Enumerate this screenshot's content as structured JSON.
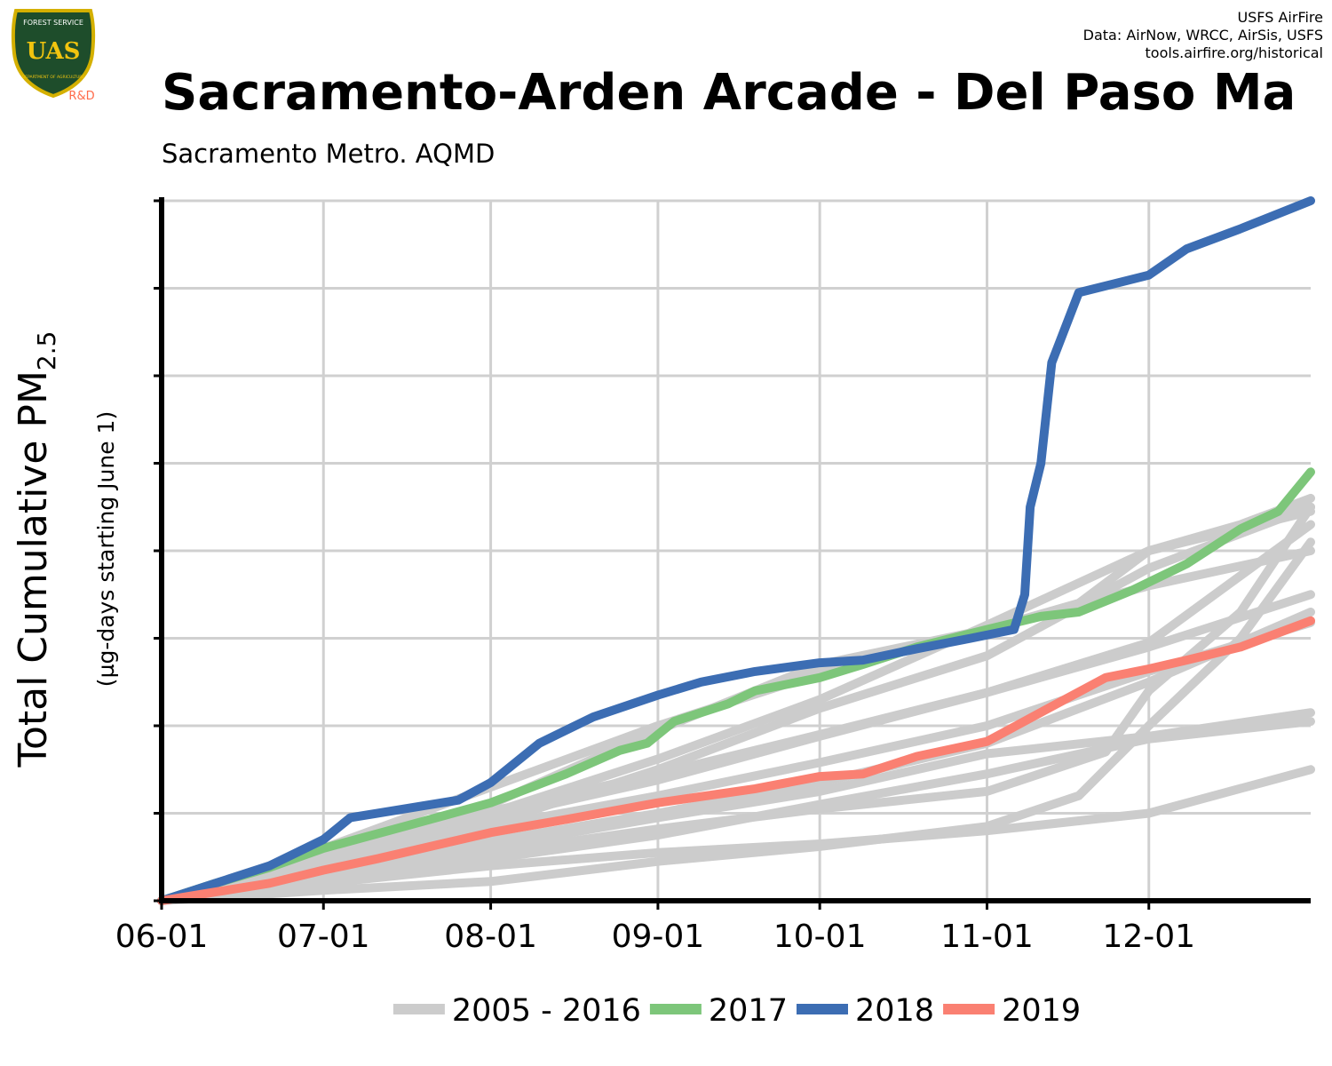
{
  "header": {
    "title": "Sacramento-Arden Arcade - Del Paso Ma",
    "subtitle": "Sacramento Metro. AQMD",
    "credits": [
      "USFS AirFire",
      "Data: AirNow, WRCC, AirSis, USFS",
      "tools.airfire.org/historical"
    ]
  },
  "logo": {
    "top_text": "FOREST SERVICE",
    "mark": "UAS",
    "bottom_text": "DEPARTMENT OF AGRICULTURE",
    "tag": "R&D",
    "colors": {
      "fill": "#1e4d2b",
      "border": "#d4b000",
      "tag": "#ff6b4a"
    }
  },
  "colors": {
    "historical": "#cccccc",
    "y2017": "#7dc67a",
    "y2018": "#3c6db3",
    "y2019": "#fa8072",
    "grid": "#d0d0d0",
    "axis": "#000000"
  },
  "chart_data": {
    "type": "line",
    "title": "Sacramento-Arden Arcade - Del Paso Ma",
    "subtitle": "Sacramento Metro. AQMD",
    "ylabel_main": "Total Cumulative PM",
    "ylabel_sub": "2.5",
    "ylabel_units": "(µg-days starting June 1)",
    "x_unit": "day of season (0 = 06-01)",
    "x_ticks": [
      {
        "label": "06-01",
        "day": 0
      },
      {
        "label": "07-01",
        "day": 30
      },
      {
        "label": "08-01",
        "day": 61
      },
      {
        "label": "09-01",
        "day": 92
      },
      {
        "label": "10-01",
        "day": 122
      },
      {
        "label": "11-01",
        "day": 153
      },
      {
        "label": "12-01",
        "day": 183
      }
    ],
    "xlim": [
      0,
      213
    ],
    "ylim": [
      0,
      8
    ],
    "y_tick_count": 9,
    "y_tick_labels_shown": false,
    "grid": true,
    "legend_position": "bottom",
    "legend": [
      {
        "label": "2005 - 2016",
        "color_key": "historical"
      },
      {
        "label": "2017",
        "color_key": "y2017"
      },
      {
        "label": "2018",
        "color_key": "y2018"
      },
      {
        "label": "2019",
        "color_key": "y2019"
      }
    ],
    "historical_series": [
      {
        "points": [
          [
            0,
            0
          ],
          [
            30,
            0.12
          ],
          [
            61,
            0.22
          ],
          [
            92,
            0.45
          ],
          [
            122,
            0.62
          ],
          [
            153,
            0.85
          ],
          [
            170,
            1.2
          ],
          [
            183,
            2.0
          ],
          [
            200,
            3.0
          ],
          [
            213,
            4.1
          ]
        ]
      },
      {
        "points": [
          [
            0,
            0
          ],
          [
            30,
            0.5
          ],
          [
            61,
            0.95
          ],
          [
            92,
            1.38
          ],
          [
            122,
            1.88
          ],
          [
            153,
            2.38
          ],
          [
            183,
            2.95
          ],
          [
            213,
            4.3
          ]
        ]
      },
      {
        "points": [
          [
            0,
            0
          ],
          [
            30,
            0.42
          ],
          [
            61,
            0.88
          ],
          [
            92,
            1.5
          ],
          [
            122,
            2.2
          ],
          [
            153,
            2.8
          ],
          [
            183,
            3.8
          ],
          [
            213,
            4.5
          ]
        ]
      },
      {
        "points": [
          [
            0,
            0
          ],
          [
            30,
            0.5
          ],
          [
            61,
            1.02
          ],
          [
            92,
            1.45
          ],
          [
            122,
            1.9
          ],
          [
            153,
            2.38
          ],
          [
            183,
            2.9
          ],
          [
            213,
            3.5
          ]
        ]
      },
      {
        "points": [
          [
            0,
            0
          ],
          [
            30,
            0.45
          ],
          [
            61,
            0.85
          ],
          [
            92,
            1.2
          ],
          [
            122,
            1.58
          ],
          [
            153,
            2.0
          ],
          [
            183,
            2.62
          ],
          [
            213,
            3.18
          ]
        ]
      },
      {
        "points": [
          [
            0,
            0
          ],
          [
            30,
            0.55
          ],
          [
            61,
            1.1
          ],
          [
            92,
            1.95
          ],
          [
            122,
            2.7
          ],
          [
            153,
            3.1
          ],
          [
            183,
            3.6
          ],
          [
            213,
            4.0
          ]
        ]
      },
      {
        "points": [
          [
            0,
            0
          ],
          [
            30,
            0.58
          ],
          [
            61,
            1.0
          ],
          [
            92,
            1.62
          ],
          [
            122,
            2.3
          ],
          [
            153,
            3.15
          ],
          [
            183,
            4.0
          ],
          [
            213,
            4.45
          ]
        ]
      },
      {
        "points": [
          [
            0,
            0
          ],
          [
            30,
            0.3
          ],
          [
            61,
            0.62
          ],
          [
            92,
            0.95
          ],
          [
            122,
            1.25
          ],
          [
            153,
            1.68
          ],
          [
            183,
            1.88
          ],
          [
            213,
            2.15
          ]
        ]
      },
      {
        "points": [
          [
            0,
            0
          ],
          [
            30,
            0.25
          ],
          [
            61,
            0.48
          ],
          [
            92,
            0.75
          ],
          [
            122,
            1.1
          ],
          [
            153,
            1.45
          ],
          [
            183,
            1.85
          ],
          [
            213,
            2.05
          ]
        ]
      },
      {
        "points": [
          [
            0,
            0
          ],
          [
            30,
            0.2
          ],
          [
            61,
            0.4
          ],
          [
            92,
            0.55
          ],
          [
            122,
            0.65
          ],
          [
            153,
            0.8
          ],
          [
            183,
            1.0
          ],
          [
            213,
            1.5
          ]
        ]
      },
      {
        "points": [
          [
            0,
            0
          ],
          [
            30,
            0.35
          ],
          [
            61,
            0.68
          ],
          [
            92,
            1.0
          ],
          [
            122,
            1.35
          ],
          [
            153,
            1.8
          ],
          [
            183,
            2.5
          ],
          [
            213,
            3.3
          ]
        ]
      },
      {
        "points": [
          [
            0,
            0
          ],
          [
            30,
            0.6
          ],
          [
            61,
            1.3
          ],
          [
            92,
            2.0
          ],
          [
            122,
            2.6
          ],
          [
            153,
            3.1
          ],
          [
            170,
            3.4
          ],
          [
            183,
            4.0
          ],
          [
            200,
            4.3
          ],
          [
            213,
            4.6
          ]
        ]
      },
      {
        "points": [
          [
            0,
            0
          ],
          [
            30,
            0.3
          ],
          [
            61,
            0.55
          ],
          [
            92,
            0.82
          ],
          [
            122,
            1.05
          ],
          [
            153,
            1.25
          ],
          [
            175,
            1.7
          ],
          [
            183,
            2.4
          ],
          [
            200,
            3.3
          ],
          [
            213,
            4.5
          ]
        ]
      }
    ],
    "series": [
      {
        "name": "2017",
        "color_key": "y2017",
        "points": [
          [
            0,
            0
          ],
          [
            10,
            0.2
          ],
          [
            20,
            0.38
          ],
          [
            30,
            0.6
          ],
          [
            45,
            0.85
          ],
          [
            61,
            1.12
          ],
          [
            75,
            1.45
          ],
          [
            85,
            1.72
          ],
          [
            90,
            1.8
          ],
          [
            95,
            2.05
          ],
          [
            105,
            2.25
          ],
          [
            110,
            2.4
          ],
          [
            122,
            2.55
          ],
          [
            130,
            2.7
          ],
          [
            140,
            2.9
          ],
          [
            153,
            3.1
          ],
          [
            163,
            3.25
          ],
          [
            170,
            3.3
          ],
          [
            180,
            3.55
          ],
          [
            190,
            3.85
          ],
          [
            200,
            4.25
          ],
          [
            207,
            4.45
          ],
          [
            213,
            4.9
          ]
        ]
      },
      {
        "name": "2018",
        "color_key": "y2018",
        "points": [
          [
            0,
            0
          ],
          [
            10,
            0.2
          ],
          [
            20,
            0.4
          ],
          [
            30,
            0.7
          ],
          [
            35,
            0.95
          ],
          [
            45,
            1.05
          ],
          [
            55,
            1.15
          ],
          [
            61,
            1.35
          ],
          [
            70,
            1.8
          ],
          [
            80,
            2.1
          ],
          [
            92,
            2.35
          ],
          [
            100,
            2.5
          ],
          [
            110,
            2.62
          ],
          [
            122,
            2.72
          ],
          [
            130,
            2.75
          ],
          [
            140,
            2.88
          ],
          [
            150,
            3.0
          ],
          [
            158,
            3.1
          ],
          [
            160,
            3.5
          ],
          [
            161,
            4.5
          ],
          [
            163,
            5.0
          ],
          [
            165,
            6.15
          ],
          [
            170,
            6.95
          ],
          [
            183,
            7.15
          ],
          [
            190,
            7.45
          ],
          [
            200,
            7.68
          ],
          [
            213,
            8.0
          ]
        ]
      },
      {
        "name": "2019",
        "color_key": "y2019",
        "points": [
          [
            0,
            0
          ],
          [
            10,
            0.1
          ],
          [
            20,
            0.2
          ],
          [
            30,
            0.35
          ],
          [
            40,
            0.48
          ],
          [
            61,
            0.78
          ],
          [
            75,
            0.93
          ],
          [
            92,
            1.12
          ],
          [
            110,
            1.28
          ],
          [
            122,
            1.42
          ],
          [
            130,
            1.45
          ],
          [
            140,
            1.65
          ],
          [
            153,
            1.82
          ],
          [
            165,
            2.22
          ],
          [
            175,
            2.55
          ],
          [
            183,
            2.65
          ],
          [
            190,
            2.75
          ],
          [
            200,
            2.9
          ],
          [
            213,
            3.2
          ]
        ]
      }
    ]
  }
}
